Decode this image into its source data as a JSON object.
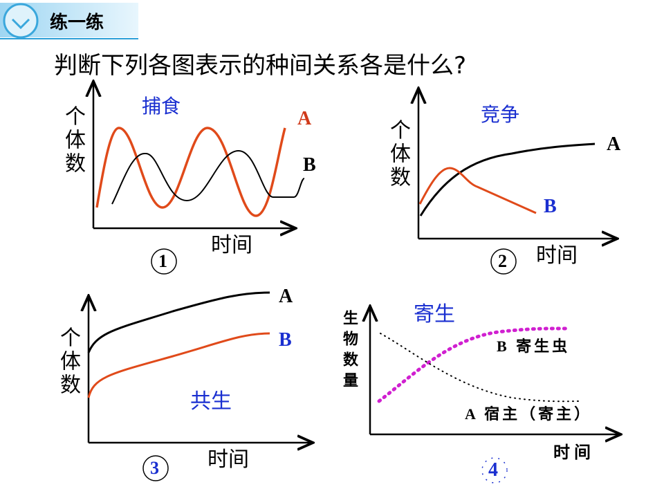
{
  "header": {
    "title": "练一练"
  },
  "question": "判断下列各图表示的种间关系各是什么?",
  "panels": [
    {
      "number": "1",
      "relation": "捕食",
      "y_label": "个体数",
      "x_label": "时间",
      "series": [
        "A",
        "B"
      ]
    },
    {
      "number": "2",
      "relation": "竞争",
      "y_label": "个体数",
      "x_label": "时间",
      "series": [
        "A",
        "B"
      ]
    },
    {
      "number": "3",
      "relation": "共生",
      "y_label": "个体数",
      "x_label": "时间",
      "series": [
        "A",
        "B"
      ]
    },
    {
      "number": "4",
      "relation": "寄生",
      "y_label": "生物数量",
      "x_label": "时间",
      "series": [
        "B 寄生虫",
        "A 宿主（寄主）"
      ]
    }
  ]
}
